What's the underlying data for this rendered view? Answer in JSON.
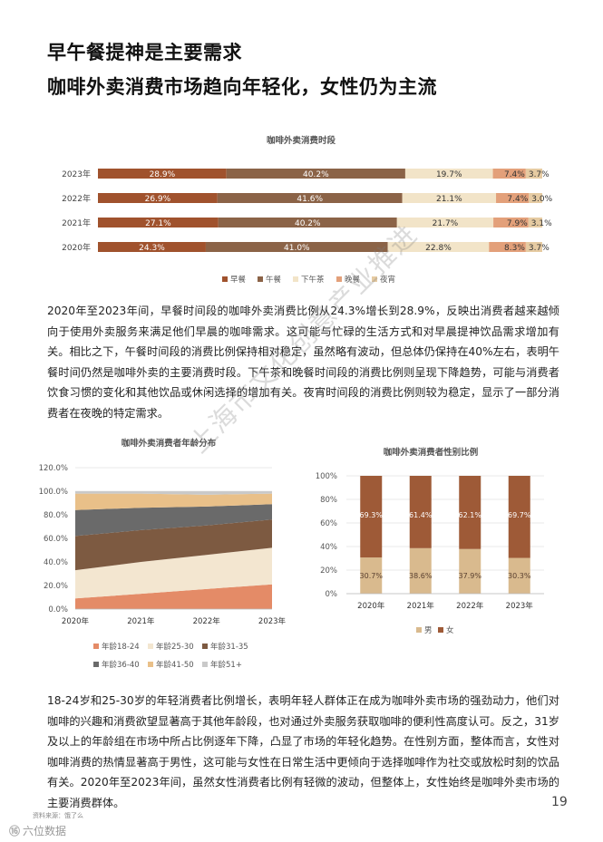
{
  "titles": {
    "line1": "早午餐提神是主要需求",
    "line2": "咖啡外卖消费市场趋向年轻化，女性仍为主流"
  },
  "paragraph1": "2020年至2023年间，早餐时间段的咖啡外卖消费比例从24.3%增长到28.9%，反映出消费者越来越倾向于使用外卖服务来满足他们早晨的咖啡需求。这可能与忙碌的生活方式和对早晨提神饮品需求增加有关。相比之下，午餐时间段的消费比例保持相对稳定，虽然略有波动，但总体仍保持在40%左右，表明午餐时间仍然是咖啡外卖的主要消费时段。下午茶和晚餐时间段的消费比例则呈现下降趋势，可能与消费者饮食习惯的变化和其他饮品或休闲选择的增加有关。夜宵时间段的消费比例则较为稳定，显示了一部分消费者在夜晚的特定需求。",
  "paragraph2": "18-24岁和25-30岁的年轻消费者比例增长，表明年轻人群体正在成为咖啡外卖市场的强劲动力，他们对咖啡的兴趣和消费欲望显著高于其他年龄段，也对通过外卖服务获取咖啡的便利性高度认可。反之，31岁及以上的年龄组在市场中所占比例逐年下降，凸显了市场的年轻化趋势。在性别方面，整体而言，女性对咖啡消费的热情显著高于男性，这可能与女性在日常生活中更倾向于选择咖啡作为社交或放松时刻的饮品有关。2020年至2023年间，虽然女性消费者比例有轻微的波动，但整体上，女性始终是咖啡外卖市场的主要消费群体。",
  "page_number": "19",
  "source": "资料来源：饿了么",
  "logo": {
    "mark": "⑯",
    "text": "六位数据"
  },
  "watermark": "上海市文化创意产业推进",
  "colors": {
    "breakfast": "#A0522D",
    "lunch": "#8B6347",
    "tea": "#F2E4C8",
    "dinner": "#E3A07A",
    "night": "#E6CBA2",
    "female": "#9E5A37",
    "male": "#D9BA8E",
    "age1824": "#E48B67",
    "age2530": "#F3E6D0",
    "age3135": "#7D5A41",
    "age3640": "#6A6A6A",
    "age4150": "#E9C089",
    "age51": "#C9C9C9"
  },
  "chart_data": [
    {
      "type": "bar",
      "orientation": "horizontal",
      "stacked": true,
      "title": "咖啡外卖消费时段",
      "categories": [
        "2023年",
        "2022年",
        "2021年",
        "2020年"
      ],
      "series": [
        {
          "name": "早餐",
          "values": [
            28.9,
            26.9,
            27.1,
            24.3
          ],
          "labels": [
            "28.9%",
            "26.9%",
            "27.1%",
            "24.3%"
          ]
        },
        {
          "name": "午餐",
          "values": [
            40.2,
            41.6,
            40.2,
            41.0
          ],
          "labels": [
            "40.2%",
            "41.6%",
            "40.2%",
            "41.0%"
          ]
        },
        {
          "name": "下午茶",
          "values": [
            19.7,
            21.1,
            21.7,
            22.8
          ],
          "labels": [
            "19.7%",
            "21.1%",
            "21.7%",
            "22.8%"
          ]
        },
        {
          "name": "晚餐",
          "values": [
            7.4,
            7.4,
            7.9,
            8.3
          ],
          "labels": [
            "7.4%",
            "7.4%",
            "7.9%",
            "8.3%"
          ]
        },
        {
          "name": "夜宵",
          "values": [
            3.7,
            3.0,
            3.1,
            3.7
          ],
          "labels": [
            "3.7%",
            "3.0%",
            "3.1%",
            "3.7%"
          ]
        }
      ],
      "legend_position": "bottom"
    },
    {
      "type": "area",
      "stacked": true,
      "title": "咖啡外卖消费者年龄分布",
      "x": [
        "2020年",
        "2021年",
        "2022年",
        "2023年"
      ],
      "yticks": [
        "0.0%",
        "20.0%",
        "40.0%",
        "60.0%",
        "80.0%",
        "100.0%",
        "120.0%"
      ],
      "ylim": [
        0,
        120
      ],
      "series": [
        {
          "name": "年龄18-24",
          "values": [
            9,
            13,
            17,
            21
          ]
        },
        {
          "name": "年龄25-30",
          "values": [
            24,
            27,
            29,
            31
          ]
        },
        {
          "name": "年龄31-35",
          "values": [
            29,
            27,
            25,
            24
          ]
        },
        {
          "name": "年龄36-40",
          "values": [
            22,
            19,
            16,
            13
          ]
        },
        {
          "name": "年龄41-50",
          "values": [
            14,
            12,
            10,
            9
          ]
        },
        {
          "name": "年龄51+",
          "values": [
            2,
            2,
            3,
            2
          ]
        }
      ],
      "legend_position": "bottom"
    },
    {
      "type": "bar",
      "stacked": true,
      "title": "咖啡外卖消费者性别比例",
      "categories": [
        "2020年",
        "2021年",
        "2022年",
        "2023年"
      ],
      "yticks": [
        "0%",
        "20%",
        "40%",
        "60%",
        "80%",
        "100%"
      ],
      "ylim": [
        0,
        100
      ],
      "series": [
        {
          "name": "男",
          "values": [
            30.7,
            38.6,
            37.9,
            30.3
          ],
          "labels": [
            "30.7%",
            "38.6%",
            "37.9%",
            "30.3%"
          ]
        },
        {
          "name": "女",
          "values": [
            69.3,
            61.4,
            62.1,
            69.7
          ],
          "labels": [
            "69.3%",
            "61.4%",
            "62.1%",
            "69.7%"
          ]
        }
      ],
      "legend_position": "bottom"
    }
  ]
}
